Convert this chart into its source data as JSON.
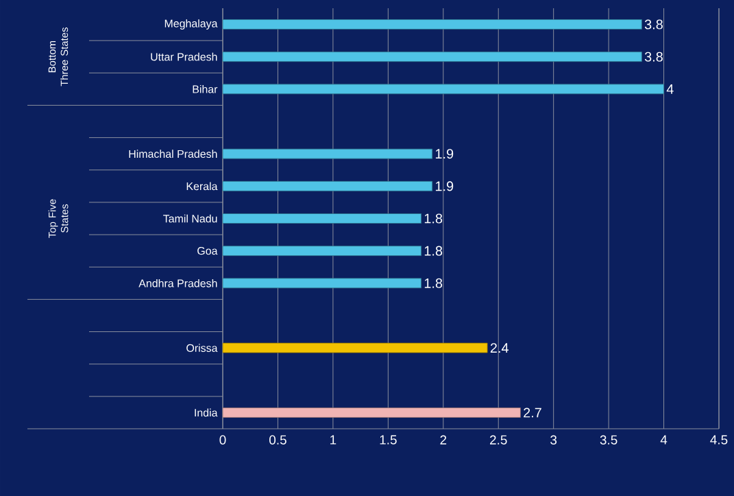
{
  "chart_data": {
    "type": "bar",
    "orientation": "horizontal",
    "categories": [
      "Meghalaya",
      "Uttar Pradesh",
      "Bihar",
      null,
      "Himachal Pradesh",
      "Kerala",
      "Tamil Nadu",
      "Goa",
      "Andhra Pradesh",
      null,
      "Orissa",
      null,
      "India"
    ],
    "values": [
      3.8,
      3.8,
      4,
      null,
      1.9,
      1.9,
      1.8,
      1.8,
      1.8,
      null,
      2.4,
      null,
      2.7
    ],
    "colors": [
      "#4fc3e6",
      "#4fc3e6",
      "#4fc3e6",
      "#4fc3e6",
      "#4fc3e6",
      "#4fc3e6",
      "#4fc3e6",
      "#4fc3e6",
      "#4fc3e6",
      "#4fc3e6",
      "#f2c200",
      "#4fc3e6",
      "#f0b4b4"
    ],
    "annotations": [
      "Bottom Three States",
      "Top Five States"
    ],
    "xlim": [
      0,
      4.5
    ],
    "xticks": [
      0,
      0.5,
      1,
      1.5,
      2,
      2.5,
      3,
      3.5,
      4,
      4.5
    ],
    "grid": "x",
    "data_labels": true
  }
}
